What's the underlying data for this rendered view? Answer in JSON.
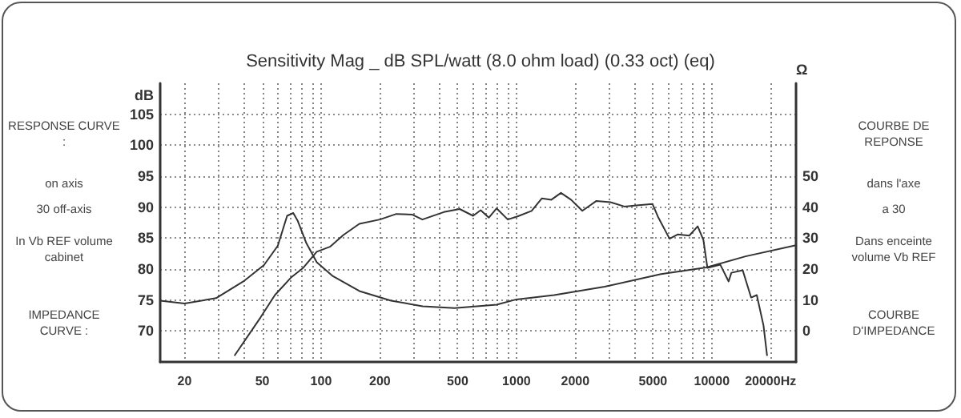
{
  "chart_data": {
    "type": "line",
    "title": "Sensitivity Mag _ dB SPL/watt (8.0 ohm load) (0.33 oct) (eq)",
    "ylabel": "dB",
    "y2label": "Ω",
    "annotations": [
      "RESPONSE CURVE :",
      "on axis",
      "30  off-axis",
      "In Vb REF volume cabinet",
      "IMPEDANCE CURVE :",
      "COURBE DE REPONSE",
      "dans l'axe",
      "a 30",
      "Dans enceinte volume Vb REF",
      "COURBE D'IMPEDANCE"
    ],
    "log": "x",
    "grid": true,
    "marker": "none",
    "line_style": "solid",
    "xlim": [
      15,
      27000
    ],
    "xticks": [
      20,
      {
        "value": 30,
        "label": null
      },
      {
        "value": 40,
        "label": null
      },
      50,
      {
        "value": 60,
        "label": null
      },
      {
        "value": 70,
        "label": null
      },
      {
        "value": 80,
        "label": null
      },
      {
        "value": 90,
        "label": null
      },
      100,
      200,
      {
        "value": 300,
        "label": null
      },
      {
        "value": 400,
        "label": null
      },
      500,
      {
        "value": 600,
        "label": null
      },
      {
        "value": 700,
        "label": null
      },
      {
        "value": 800,
        "label": null
      },
      {
        "value": 900,
        "label": null
      },
      1000,
      2000,
      {
        "value": 3000,
        "label": null
      },
      {
        "value": 4000,
        "label": null
      },
      5000,
      {
        "value": 6000,
        "label": null
      },
      {
        "value": 7000,
        "label": null
      },
      {
        "value": 8000,
        "label": null
      },
      {
        "value": 9000,
        "label": null
      },
      10000,
      {
        "value": 20000,
        "label": "20000Hz"
      }
    ],
    "ylim": [
      65,
      110
    ],
    "yticks": [
      70,
      75,
      80,
      85,
      90,
      95,
      100,
      105
    ],
    "y2lim": [
      -10,
      80
    ],
    "y2ticks": [
      0,
      10,
      20,
      30,
      40,
      50
    ],
    "series": [
      {
        "color": "#333333",
        "x": [
          36,
          49,
          58,
          70,
          81,
          95,
          111,
          130,
          157,
          200,
          243,
          292,
          330,
          425,
          512,
          600,
          656,
          722,
          792,
          903,
          1013,
          1196,
          1348,
          1510,
          1690,
          1903,
          2174,
          2567,
          3028,
          3570,
          4219,
          4975,
          5330,
          6080,
          6710,
          7670,
          8470,
          9060,
          9500,
          11060,
          12200,
          12600,
          14400,
          15900,
          17000,
          18400,
          19200
        ],
        "values": [
          66,
          72.2,
          75.8,
          78.6,
          80.2,
          82.8,
          83.6,
          85.5,
          87.3,
          88,
          88.9,
          88.8,
          88,
          89.2,
          89.7,
          88.6,
          89.5,
          88.3,
          89.8,
          88,
          88.5,
          89.4,
          91.4,
          91.2,
          92.3,
          91.2,
          89.4,
          91,
          90.8,
          90.1,
          90.3,
          90.5,
          88.3,
          84.9,
          85.6,
          85.4,
          86.9,
          84.7,
          80.2,
          80.7,
          78,
          79.4,
          79.8,
          75.4,
          75.8,
          70.9,
          66
        ]
      },
      {
        "color": "#333333",
        "axis": "y2",
        "x": [
          15,
          20,
          29,
          40,
          51,
          60,
          67,
          72,
          76,
          84,
          95,
          115,
          157,
          228,
          331,
          482,
          792,
          1000,
          1560,
          2830,
          5500,
          9380,
          14900,
          27000
        ],
        "values": [
          9.8,
          8.9,
          10.6,
          16,
          21.3,
          27.5,
          37.2,
          38.1,
          35.5,
          28.4,
          22.2,
          17.7,
          12.9,
          9.8,
          8,
          7.4,
          8.5,
          10.2,
          11.6,
          14.3,
          18.4,
          20.5,
          24.1,
          27.7
        ]
      }
    ]
  }
}
